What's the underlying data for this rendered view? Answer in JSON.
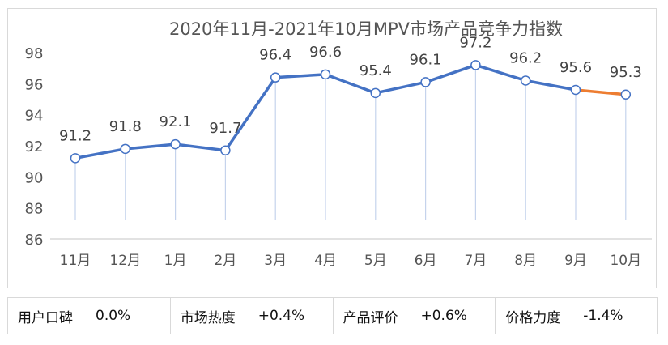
{
  "chart_data": {
    "type": "line",
    "title": "2020年11月-2021年10月MPV市场产品竞争力指数",
    "categories": [
      "11月",
      "12月",
      "1月",
      "2月",
      "3月",
      "4月",
      "5月",
      "6月",
      "7月",
      "8月",
      "9月",
      "10月"
    ],
    "values": [
      91.2,
      91.8,
      92.1,
      91.7,
      96.4,
      96.6,
      95.4,
      96.1,
      97.2,
      96.2,
      95.6,
      95.3
    ],
    "data_labels": [
      "91.2",
      "91.8",
      "92.1",
      "91.7",
      "96.4",
      "96.6",
      "95.4",
      "96.1",
      "97.2",
      "96.2",
      "95.6",
      "95.3"
    ],
    "ylim": [
      86,
      98
    ],
    "yticks": [
      "86",
      "88",
      "90",
      "92",
      "94",
      "96",
      "98"
    ],
    "grid": false,
    "colors": {
      "line": "#4472C4",
      "last_segment": "#ED7D31",
      "drop_line": "#c5d3ec"
    }
  },
  "stats": [
    {
      "label": "用户口碑",
      "value": "0.0%"
    },
    {
      "label": "市场热度",
      "value": "+0.4%"
    },
    {
      "label": "产品评价",
      "value": "+0.6%"
    },
    {
      "label": "价格力度",
      "value": "-1.4%"
    }
  ]
}
